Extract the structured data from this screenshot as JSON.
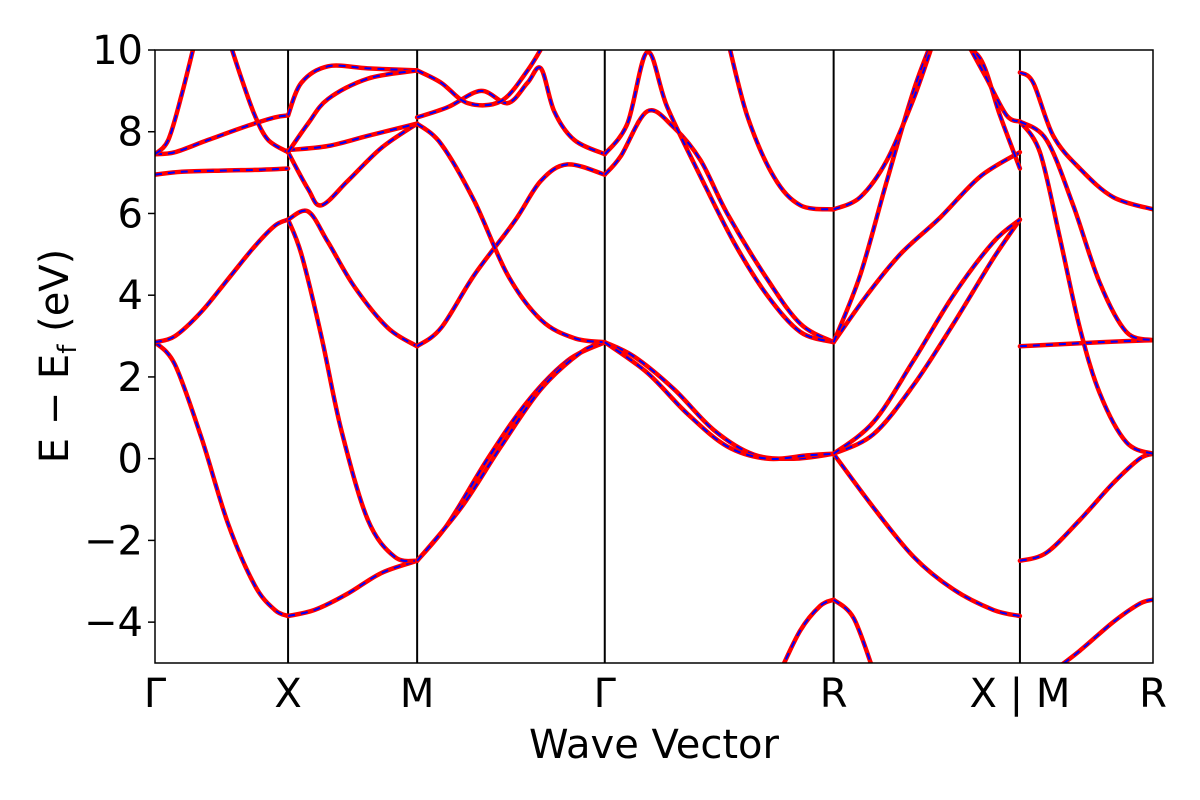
{
  "chart_data": {
    "type": "line",
    "xlabel": "Wave Vector",
    "ylabel": "E − E",
    "ylabel_sub": "f",
    "ylabel_unit": " (eV)",
    "ylim": [
      -5,
      10
    ],
    "yticks": [
      -4,
      -2,
      0,
      2,
      4,
      6,
      8,
      10
    ],
    "ytick_labels": [
      "−4",
      "−2",
      "0",
      "2",
      "4",
      "6",
      "8",
      "10"
    ],
    "xlim": [
      0,
      7.5
    ],
    "kpoints": [
      {
        "label": "Γ",
        "x": 0
      },
      {
        "label": "X",
        "x": 1
      },
      {
        "label": "M",
        "x": 1.97
      },
      {
        "label": "Γ",
        "x": 3.38
      },
      {
        "label": "R",
        "x": 5.1
      },
      {
        "label": "X | M",
        "x": 6.5
      },
      {
        "label": "R",
        "x": 7.5
      }
    ],
    "colors": {
      "series_1": "#ff0000",
      "series_2": "#0000ff"
    },
    "series_styles": {
      "series_1": "solid",
      "series_2": "dashed"
    },
    "series": [
      {
        "segment": "Γ-X",
        "x0": 0,
        "x1": 1,
        "points": [
          [
            0,
            2.85
          ],
          [
            0.15,
            2.3
          ],
          [
            0.35,
            0.5
          ],
          [
            0.55,
            -1.6
          ],
          [
            0.75,
            -3.1
          ],
          [
            0.9,
            -3.7
          ],
          [
            1,
            -3.85
          ]
        ]
      },
      {
        "segment": "Γ-X",
        "x0": 0,
        "x1": 1,
        "points": [
          [
            0,
            2.85
          ],
          [
            0.15,
            3.0
          ],
          [
            0.35,
            3.6
          ],
          [
            0.55,
            4.4
          ],
          [
            0.75,
            5.2
          ],
          [
            0.9,
            5.7
          ],
          [
            1,
            5.85
          ]
        ]
      },
      {
        "segment": "Γ-X",
        "x0": 0,
        "x1": 1,
        "points": [
          [
            0,
            6.95
          ],
          [
            0.2,
            7.02
          ],
          [
            0.5,
            7.05
          ],
          [
            0.8,
            7.07
          ],
          [
            1,
            7.1
          ]
        ]
      },
      {
        "segment": "Γ-X",
        "x0": 0,
        "x1": 1,
        "points": [
          [
            0,
            7.45
          ],
          [
            0.15,
            7.5
          ],
          [
            0.4,
            7.8
          ],
          [
            0.7,
            8.15
          ],
          [
            0.9,
            8.35
          ],
          [
            1,
            8.4
          ]
        ]
      },
      {
        "segment": "Γ-X",
        "x0": 0,
        "x1": 1,
        "points": [
          [
            0,
            7.45
          ],
          [
            0.1,
            7.8
          ],
          [
            0.2,
            8.9
          ],
          [
            0.3,
            10.2
          ]
        ]
      },
      {
        "segment": "Γ-X",
        "x0": 0,
        "x1": 1,
        "points": [
          [
            0.55,
            10.3
          ],
          [
            0.65,
            9.3
          ],
          [
            0.75,
            8.4
          ],
          [
            0.85,
            7.8
          ],
          [
            1,
            7.5
          ]
        ]
      },
      {
        "segment": "X-M",
        "x0": 1,
        "x1": 1.97,
        "points": [
          [
            1,
            -3.85
          ],
          [
            1.2,
            -3.7
          ],
          [
            1.45,
            -3.3
          ],
          [
            1.7,
            -2.8
          ],
          [
            1.97,
            -2.5
          ]
        ]
      },
      {
        "segment": "X-M",
        "x0": 1,
        "x1": 1.97,
        "points": [
          [
            1,
            5.85
          ],
          [
            1.1,
            5.0
          ],
          [
            1.25,
            3.0
          ],
          [
            1.4,
            0.7
          ],
          [
            1.6,
            -1.5
          ],
          [
            1.8,
            -2.4
          ],
          [
            1.97,
            -2.5
          ]
        ]
      },
      {
        "segment": "X-M",
        "x0": 1,
        "x1": 1.97,
        "points": [
          [
            1,
            5.85
          ],
          [
            1.15,
            6.05
          ],
          [
            1.3,
            5.3
          ],
          [
            1.5,
            4.2
          ],
          [
            1.75,
            3.2
          ],
          [
            1.97,
            2.75
          ]
        ]
      },
      {
        "segment": "X-M",
        "x0": 1,
        "x1": 1.97,
        "points": [
          [
            1,
            7.5
          ],
          [
            1.15,
            6.6
          ],
          [
            1.25,
            6.2
          ],
          [
            1.45,
            6.8
          ],
          [
            1.7,
            7.6
          ],
          [
            1.97,
            8.2
          ]
        ]
      },
      {
        "segment": "X-M",
        "x0": 1,
        "x1": 1.97,
        "points": [
          [
            1,
            7.55
          ],
          [
            1.3,
            7.65
          ],
          [
            1.6,
            7.9
          ],
          [
            1.97,
            8.2
          ]
        ]
      },
      {
        "segment": "X-M",
        "x0": 1,
        "x1": 1.97,
        "points": [
          [
            1,
            8.4
          ],
          [
            1.1,
            9.2
          ],
          [
            1.3,
            9.6
          ],
          [
            1.6,
            9.55
          ],
          [
            1.97,
            9.5
          ]
        ]
      },
      {
        "segment": "X-M",
        "x0": 1,
        "x1": 1.97,
        "points": [
          [
            1,
            7.5
          ],
          [
            1.15,
            8.2
          ],
          [
            1.3,
            8.8
          ],
          [
            1.6,
            9.3
          ],
          [
            1.97,
            9.5
          ]
        ]
      },
      {
        "segment": "M-Γ",
        "x0": 1.97,
        "x1": 3.38,
        "points": [
          [
            1.97,
            -2.5
          ],
          [
            2.2,
            -1.6
          ],
          [
            2.5,
            0
          ],
          [
            2.8,
            1.4
          ],
          [
            3.1,
            2.4
          ],
          [
            3.38,
            2.85
          ]
        ]
      },
      {
        "segment": "M-Γ",
        "x0": 1.97,
        "x1": 3.38,
        "points": [
          [
            1.97,
            -2.5
          ],
          [
            2.3,
            -1.2
          ],
          [
            2.6,
            0.3
          ],
          [
            2.9,
            1.7
          ],
          [
            3.2,
            2.6
          ],
          [
            3.38,
            2.85
          ]
        ]
      },
      {
        "segment": "M-Γ",
        "x0": 1.97,
        "x1": 3.38,
        "points": [
          [
            1.97,
            2.75
          ],
          [
            2.15,
            3.2
          ],
          [
            2.4,
            4.5
          ],
          [
            2.7,
            5.8
          ],
          [
            2.9,
            6.8
          ],
          [
            3.1,
            7.2
          ],
          [
            3.38,
            6.95
          ]
        ]
      },
      {
        "segment": "M-Γ",
        "x0": 1.97,
        "x1": 3.38,
        "points": [
          [
            1.97,
            8.2
          ],
          [
            2.15,
            7.7
          ],
          [
            2.4,
            6.3
          ],
          [
            2.65,
            4.5
          ],
          [
            2.9,
            3.4
          ],
          [
            3.15,
            2.95
          ],
          [
            3.38,
            2.85
          ]
        ]
      },
      {
        "segment": "M-Γ",
        "x0": 1.97,
        "x1": 3.38,
        "points": [
          [
            1.97,
            8.35
          ],
          [
            2.2,
            8.6
          ],
          [
            2.45,
            9.0
          ],
          [
            2.65,
            8.7
          ],
          [
            2.8,
            9.2
          ],
          [
            2.9,
            9.55
          ],
          [
            3.0,
            8.5
          ],
          [
            3.15,
            7.8
          ],
          [
            3.38,
            7.45
          ]
        ]
      },
      {
        "segment": "M-Γ",
        "x0": 1.97,
        "x1": 3.38,
        "points": [
          [
            1.97,
            9.5
          ],
          [
            2.15,
            9.2
          ],
          [
            2.35,
            8.7
          ],
          [
            2.6,
            8.75
          ],
          [
            2.8,
            9.5
          ],
          [
            2.95,
            10.3
          ]
        ]
      },
      {
        "segment": "Γ-R",
        "x0": 3.38,
        "x1": 5.1,
        "points": [
          [
            3.38,
            2.85
          ],
          [
            3.6,
            2.5
          ],
          [
            3.9,
            1.7
          ],
          [
            4.2,
            0.7
          ],
          [
            4.5,
            0.1
          ],
          [
            4.8,
            0
          ],
          [
            5.1,
            0.12
          ]
        ]
      },
      {
        "segment": "Γ-R",
        "x0": 3.38,
        "x1": 5.1,
        "points": [
          [
            3.38,
            2.85
          ],
          [
            3.7,
            2.1
          ],
          [
            4.0,
            1.1
          ],
          [
            4.3,
            0.3
          ],
          [
            4.6,
            0
          ],
          [
            4.9,
            0.08
          ],
          [
            5.1,
            0.12
          ]
        ]
      },
      {
        "segment": "Γ-R",
        "x0": 3.38,
        "x1": 5.1,
        "points": [
          [
            3.38,
            6.95
          ],
          [
            3.5,
            7.4
          ],
          [
            3.7,
            8.5
          ],
          [
            3.9,
            8.1
          ],
          [
            4.1,
            7.3
          ],
          [
            4.3,
            6.0
          ],
          [
            4.6,
            4.4
          ],
          [
            4.85,
            3.3
          ],
          [
            5.1,
            2.85
          ]
        ]
      },
      {
        "segment": "Γ-R",
        "x0": 3.38,
        "x1": 5.1,
        "points": [
          [
            3.38,
            7.45
          ],
          [
            3.55,
            8.2
          ],
          [
            3.7,
            9.95
          ],
          [
            3.85,
            8.6
          ],
          [
            4.1,
            6.9
          ],
          [
            4.35,
            5.3
          ],
          [
            4.6,
            4.0
          ],
          [
            4.85,
            3.1
          ],
          [
            5.1,
            2.85
          ]
        ]
      },
      {
        "segment": "Γ-R",
        "x0": 3.38,
        "x1": 5.1,
        "points": [
          [
            4.3,
            10.3
          ],
          [
            4.45,
            8.4
          ],
          [
            4.65,
            6.9
          ],
          [
            4.85,
            6.2
          ],
          [
            5.1,
            6.1
          ]
        ]
      },
      {
        "segment": "Γ-R",
        "x0": 3.38,
        "x1": 5.1,
        "points": [
          [
            4.7,
            -5.2
          ],
          [
            4.85,
            -4.2
          ],
          [
            5.0,
            -3.6
          ],
          [
            5.1,
            -3.45
          ]
        ]
      },
      {
        "segment": "R-X",
        "x0": 5.1,
        "x1": 6.5,
        "points": [
          [
            5.1,
            -3.45
          ],
          [
            5.25,
            -3.9
          ],
          [
            5.4,
            -5.2
          ]
        ]
      },
      {
        "segment": "R-X",
        "x0": 5.1,
        "x1": 6.5,
        "points": [
          [
            5.1,
            0.12
          ],
          [
            5.4,
            -1.2
          ],
          [
            5.7,
            -2.4
          ],
          [
            6.0,
            -3.2
          ],
          [
            6.3,
            -3.7
          ],
          [
            6.5,
            -3.85
          ]
        ]
      },
      {
        "segment": "R-X",
        "x0": 5.1,
        "x1": 6.5,
        "points": [
          [
            5.1,
            0.12
          ],
          [
            5.4,
            0.6
          ],
          [
            5.7,
            1.8
          ],
          [
            6.0,
            3.3
          ],
          [
            6.3,
            4.9
          ],
          [
            6.5,
            5.85
          ]
        ]
      },
      {
        "segment": "R-X",
        "x0": 5.1,
        "x1": 6.5,
        "points": [
          [
            5.1,
            0.12
          ],
          [
            5.4,
            0.9
          ],
          [
            5.7,
            2.4
          ],
          [
            6.0,
            4.0
          ],
          [
            6.3,
            5.3
          ],
          [
            6.5,
            5.85
          ]
        ]
      },
      {
        "segment": "R-X",
        "x0": 5.1,
        "x1": 6.5,
        "points": [
          [
            5.1,
            2.85
          ],
          [
            5.35,
            4.0
          ],
          [
            5.6,
            5.0
          ],
          [
            5.9,
            5.9
          ],
          [
            6.2,
            6.9
          ],
          [
            6.5,
            7.5
          ]
        ]
      },
      {
        "segment": "R-X",
        "x0": 5.1,
        "x1": 6.5,
        "points": [
          [
            5.1,
            2.85
          ],
          [
            5.3,
            4.5
          ],
          [
            5.5,
            6.8
          ],
          [
            5.7,
            9.0
          ],
          [
            5.85,
            10.3
          ]
        ]
      },
      {
        "segment": "R-X",
        "x0": 5.1,
        "x1": 6.5,
        "points": [
          [
            5.1,
            6.1
          ],
          [
            5.3,
            6.4
          ],
          [
            5.5,
            7.3
          ],
          [
            5.7,
            8.8
          ],
          [
            5.85,
            10.2
          ]
        ]
      },
      {
        "segment": "R-X",
        "x0": 5.1,
        "x1": 6.5,
        "points": [
          [
            6.0,
            10.2
          ],
          [
            6.2,
            9.8
          ],
          [
            6.35,
            8.4
          ],
          [
            6.5,
            7.1
          ]
        ]
      },
      {
        "segment": "R-X",
        "x0": 5.1,
        "x1": 6.5,
        "points": [
          [
            6.1,
            10.2
          ],
          [
            6.25,
            9.3
          ],
          [
            6.4,
            8.4
          ],
          [
            6.5,
            8.25
          ]
        ]
      },
      {
        "segment": "M-R",
        "x0": 6.5,
        "x1": 7.5,
        "points": [
          [
            6.5,
            2.75
          ],
          [
            6.8,
            2.8
          ],
          [
            7.1,
            2.85
          ],
          [
            7.5,
            2.9
          ]
        ]
      },
      {
        "segment": "M-R",
        "x0": 6.5,
        "x1": 7.5,
        "points": [
          [
            6.5,
            -2.5
          ],
          [
            6.7,
            -2.3
          ],
          [
            6.95,
            -1.5
          ],
          [
            7.2,
            -0.6
          ],
          [
            7.4,
            0
          ],
          [
            7.5,
            0.12
          ]
        ]
      },
      {
        "segment": "M-R",
        "x0": 6.5,
        "x1": 7.5,
        "points": [
          [
            6.5,
            8.25
          ],
          [
            6.65,
            7.5
          ],
          [
            6.8,
            5.4
          ],
          [
            6.95,
            3.2
          ],
          [
            7.1,
            1.6
          ],
          [
            7.3,
            0.4
          ],
          [
            7.5,
            0.12
          ]
        ]
      },
      {
        "segment": "M-R",
        "x0": 6.5,
        "x1": 7.5,
        "points": [
          [
            6.5,
            8.25
          ],
          [
            6.7,
            7.8
          ],
          [
            6.9,
            6.2
          ],
          [
            7.1,
            4.3
          ],
          [
            7.3,
            3.1
          ],
          [
            7.5,
            2.9
          ]
        ]
      },
      {
        "segment": "M-R",
        "x0": 6.5,
        "x1": 7.5,
        "points": [
          [
            6.5,
            9.45
          ],
          [
            6.6,
            9.2
          ],
          [
            6.75,
            7.9
          ],
          [
            6.95,
            7.1
          ],
          [
            7.2,
            6.4
          ],
          [
            7.5,
            6.1
          ]
        ]
      },
      {
        "segment": "M-R",
        "x0": 6.5,
        "x1": 7.5,
        "points": [
          [
            6.75,
            -5.2
          ],
          [
            6.95,
            -4.7
          ],
          [
            7.2,
            -4.0
          ],
          [
            7.4,
            -3.55
          ],
          [
            7.5,
            -3.45
          ]
        ]
      }
    ]
  }
}
